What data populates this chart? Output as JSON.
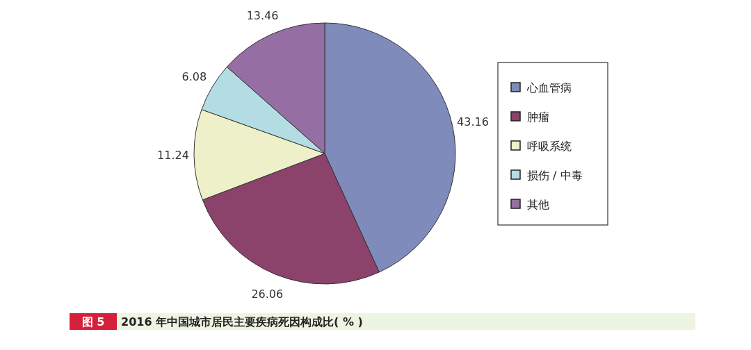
{
  "chart_data": {
    "type": "pie",
    "title": "2016 年中国城市居民主要疾病死因构成比( % )",
    "annotations": [
      "图 5"
    ],
    "categories": [
      "心血管病",
      "肿瘤",
      "呼吸系统",
      "损伤 / 中毒",
      "其他"
    ],
    "values": [
      43.16,
      26.06,
      11.24,
      6.08,
      13.46
    ],
    "colors": [
      "#7f8bbb",
      "#8b426b",
      "#eef0c9",
      "#b3dde2",
      "#956ea3"
    ],
    "data_labels": true,
    "legend": "right"
  }
}
